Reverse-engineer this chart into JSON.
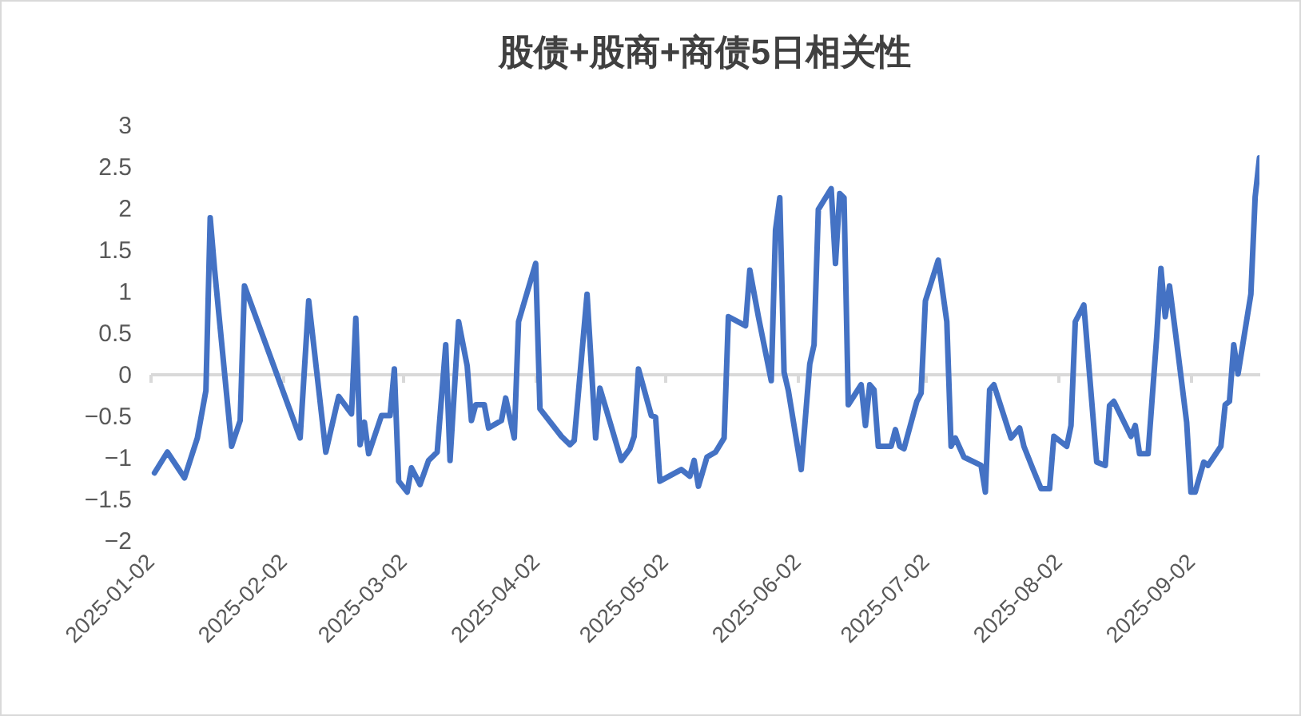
{
  "chart_data": {
    "type": "line",
    "title": "股债+股商+商债5日相关性",
    "x": [
      "2025-01-03",
      "2025-01-06",
      "2025-01-10",
      "2025-01-13",
      "2025-01-15",
      "2025-01-16",
      "2025-01-17",
      "2025-01-21",
      "2025-01-23",
      "2025-01-24",
      "2025-02-06",
      "2025-02-08",
      "2025-02-12",
      "2025-02-15",
      "2025-02-18",
      "2025-02-19",
      "2025-02-20",
      "2025-02-21",
      "2025-02-22",
      "2025-02-25",
      "2025-02-27",
      "2025-02-28",
      "2025-03-01",
      "2025-03-03",
      "2025-03-04",
      "2025-03-06",
      "2025-03-08",
      "2025-03-10",
      "2025-03-12",
      "2025-03-13",
      "2025-03-15",
      "2025-03-17",
      "2025-03-18",
      "2025-03-19",
      "2025-03-21",
      "2025-03-22",
      "2025-03-25",
      "2025-03-26",
      "2025-03-28",
      "2025-03-29",
      "2025-03-31",
      "2025-04-02",
      "2025-04-03",
      "2025-04-08",
      "2025-04-10",
      "2025-04-11",
      "2025-04-14",
      "2025-04-16",
      "2025-04-17",
      "2025-04-22",
      "2025-04-24",
      "2025-04-25",
      "2025-04-26",
      "2025-04-29",
      "2025-04-30",
      "2025-05-01",
      "2025-05-06",
      "2025-05-08",
      "2025-05-09",
      "2025-05-10",
      "2025-05-12",
      "2025-05-14",
      "2025-05-16",
      "2025-05-17",
      "2025-05-21",
      "2025-05-22",
      "2025-05-24",
      "2025-05-27",
      "2025-05-28",
      "2025-05-29",
      "2025-05-30",
      "2025-05-31",
      "2025-06-03",
      "2025-06-05",
      "2025-06-06",
      "2025-06-07",
      "2025-06-10",
      "2025-06-11",
      "2025-06-12",
      "2025-06-13",
      "2025-06-14",
      "2025-06-17",
      "2025-06-18",
      "2025-06-19",
      "2025-06-20",
      "2025-06-21",
      "2025-06-24",
      "2025-06-25",
      "2025-06-26",
      "2025-06-27",
      "2025-06-30",
      "2025-07-01",
      "2025-07-02",
      "2025-07-05",
      "2025-07-07",
      "2025-07-08",
      "2025-07-09",
      "2025-07-11",
      "2025-07-15",
      "2025-07-16",
      "2025-07-17",
      "2025-07-18",
      "2025-07-22",
      "2025-07-24",
      "2025-07-25",
      "2025-07-27",
      "2025-07-29",
      "2025-07-31",
      "2025-08-01",
      "2025-08-04",
      "2025-08-05",
      "2025-08-06",
      "2025-08-08",
      "2025-08-11",
      "2025-08-13",
      "2025-08-14",
      "2025-08-15",
      "2025-08-19",
      "2025-08-20",
      "2025-08-21",
      "2025-08-23",
      "2025-08-25",
      "2025-08-26",
      "2025-08-27",
      "2025-08-28",
      "2025-08-30",
      "2025-09-01",
      "2025-09-02",
      "2025-09-03",
      "2025-09-05",
      "2025-09-06",
      "2025-09-09",
      "2025-09-10",
      "2025-09-11",
      "2025-09-12",
      "2025-09-13",
      "2025-09-16",
      "2025-09-17",
      "2025-09-18"
    ],
    "series": [
      {
        "color": "#4472c4",
        "values": [
          -1.19,
          -0.94,
          -1.25,
          -0.77,
          -0.2,
          1.88,
          1.27,
          -0.87,
          -0.56,
          1.06,
          -0.77,
          0.88,
          -0.94,
          -0.27,
          -0.48,
          0.67,
          -0.85,
          -0.58,
          -0.96,
          -0.5,
          -0.5,
          0.06,
          -1.29,
          -1.42,
          -1.13,
          -1.33,
          -1.04,
          -0.94,
          0.35,
          -1.04,
          0.63,
          0.1,
          -0.56,
          -0.37,
          -0.37,
          -0.65,
          -0.56,
          -0.29,
          -0.77,
          0.63,
          0.98,
          1.33,
          -0.42,
          -0.75,
          -0.85,
          -0.8,
          0.96,
          -0.77,
          -0.17,
          -1.04,
          -0.9,
          -0.75,
          0.06,
          -0.5,
          -0.52,
          -1.29,
          -1.15,
          -1.23,
          -1.04,
          -1.35,
          -1.0,
          -0.94,
          -0.77,
          0.69,
          0.58,
          1.25,
          0.69,
          -0.08,
          1.73,
          2.12,
          0.02,
          -0.2,
          -1.15,
          0.12,
          0.35,
          1.98,
          2.23,
          1.33,
          2.17,
          2.12,
          -0.37,
          -0.13,
          -0.62,
          -0.13,
          -0.19,
          -0.87,
          -0.87,
          -0.67,
          -0.87,
          -0.9,
          -0.33,
          -0.23,
          0.88,
          1.37,
          0.63,
          -0.87,
          -0.77,
          -1.0,
          -1.1,
          -1.42,
          -0.19,
          -0.13,
          -0.77,
          -0.65,
          -0.87,
          -1.13,
          -1.38,
          -1.38,
          -0.75,
          -0.87,
          -0.62,
          0.63,
          0.83,
          -1.06,
          -1.1,
          -0.38,
          -0.33,
          -0.75,
          -0.62,
          -0.96,
          -0.96,
          0.44,
          1.27,
          0.69,
          1.06,
          0.25,
          -0.58,
          -1.42,
          -1.42,
          -1.06,
          -1.1,
          -0.87,
          -0.37,
          -0.33,
          0.35,
          0.0,
          0.96,
          2.13,
          2.6
        ]
      }
    ],
    "xlim": [
      "2025-01-02",
      "2025-09-18"
    ],
    "xticks": [
      "2025-01-02",
      "2025-02-02",
      "2025-03-02",
      "2025-04-02",
      "2025-05-02",
      "2025-06-02",
      "2025-07-02",
      "2025-08-02",
      "2025-09-02"
    ],
    "ylim": [
      -2,
      3
    ],
    "yticks": [
      -2,
      -1.5,
      -1,
      -0.5,
      0,
      0.5,
      1,
      1.5,
      2,
      2.5,
      3
    ],
    "marker": "none",
    "line_style": "solid"
  }
}
